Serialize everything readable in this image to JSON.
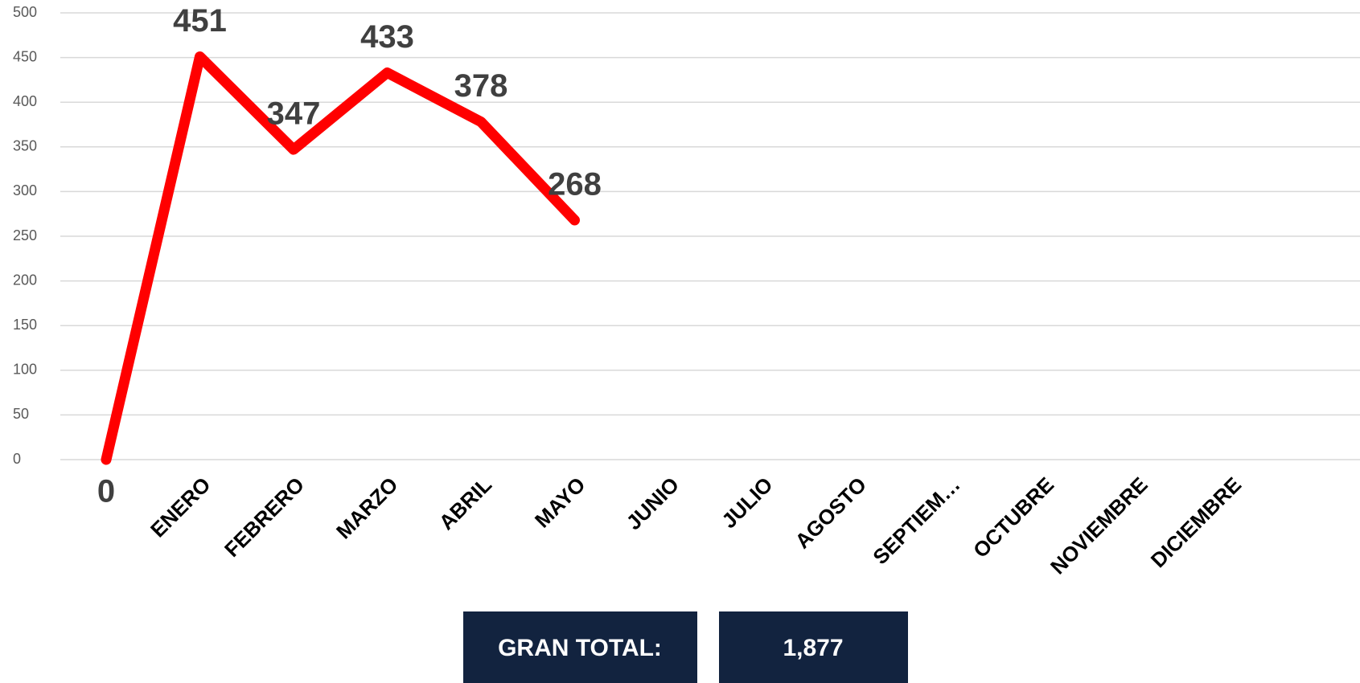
{
  "chart_data": {
    "type": "line",
    "categories": [
      null,
      "ENERO",
      "FEBRERO",
      "MARZO",
      "ABRIL",
      "MAYO",
      "JUNIO",
      "JULIO",
      "AGOSTO",
      "SEPTIEM…",
      "OCTUBRE",
      "NOVIEMBRE",
      "DICIEMBRE"
    ],
    "series": [
      {
        "name": null,
        "color": "#ff0000",
        "values": [
          0,
          451,
          347,
          433,
          378,
          268,
          null,
          null,
          null,
          null,
          null,
          null,
          null
        ]
      }
    ],
    "ylim": [
      0,
      500
    ],
    "yticks": [
      0,
      50,
      100,
      150,
      200,
      250,
      300,
      350,
      400,
      450,
      500
    ],
    "grid": true
  },
  "summary": {
    "label": "GRAN TOTAL:",
    "value": "1,877"
  }
}
